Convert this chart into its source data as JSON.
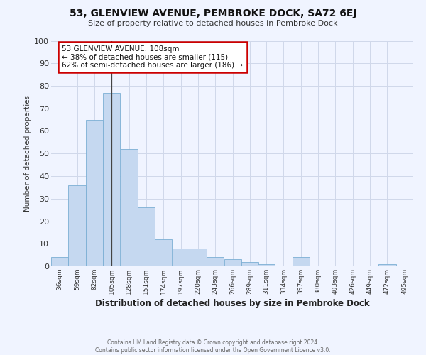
{
  "title": "53, GLENVIEW AVENUE, PEMBROKE DOCK, SA72 6EJ",
  "subtitle": "Size of property relative to detached houses in Pembroke Dock",
  "xlabel": "Distribution of detached houses by size in Pembroke Dock",
  "ylabel": "Number of detached properties",
  "bar_color": "#c5d8f0",
  "bar_edge_color": "#7bafd4",
  "background_color": "#f0f4ff",
  "annotation_line1": "53 GLENVIEW AVENUE: 108sqm",
  "annotation_line2": "← 38% of detached houses are smaller (115)",
  "annotation_line3": "62% of semi-detached houses are larger (186) →",
  "annotation_box_color": "#ffffff",
  "annotation_box_edge_color": "#cc0000",
  "categories": [
    "36sqm",
    "59sqm",
    "82sqm",
    "105sqm",
    "128sqm",
    "151sqm",
    "174sqm",
    "197sqm",
    "220sqm",
    "243sqm",
    "266sqm",
    "289sqm",
    "311sqm",
    "334sqm",
    "357sqm",
    "380sqm",
    "403sqm",
    "426sqm",
    "449sqm",
    "472sqm",
    "495sqm"
  ],
  "bin_edges": [
    36,
    59,
    82,
    105,
    128,
    151,
    174,
    197,
    220,
    243,
    266,
    289,
    311,
    334,
    357,
    380,
    403,
    426,
    449,
    472,
    495
  ],
  "values": [
    4,
    36,
    65,
    77,
    52,
    26,
    12,
    8,
    8,
    4,
    3,
    2,
    1,
    0,
    4,
    0,
    0,
    0,
    0,
    1,
    0
  ],
  "ylim": [
    0,
    100
  ],
  "yticks": [
    0,
    10,
    20,
    30,
    40,
    50,
    60,
    70,
    80,
    90,
    100
  ],
  "footer_line1": "Contains HM Land Registry data © Crown copyright and database right 2024.",
  "footer_line2": "Contains public sector information licensed under the Open Government Licence v3.0.",
  "grid_color": "#d0d8ea",
  "vline_color": "#444444"
}
